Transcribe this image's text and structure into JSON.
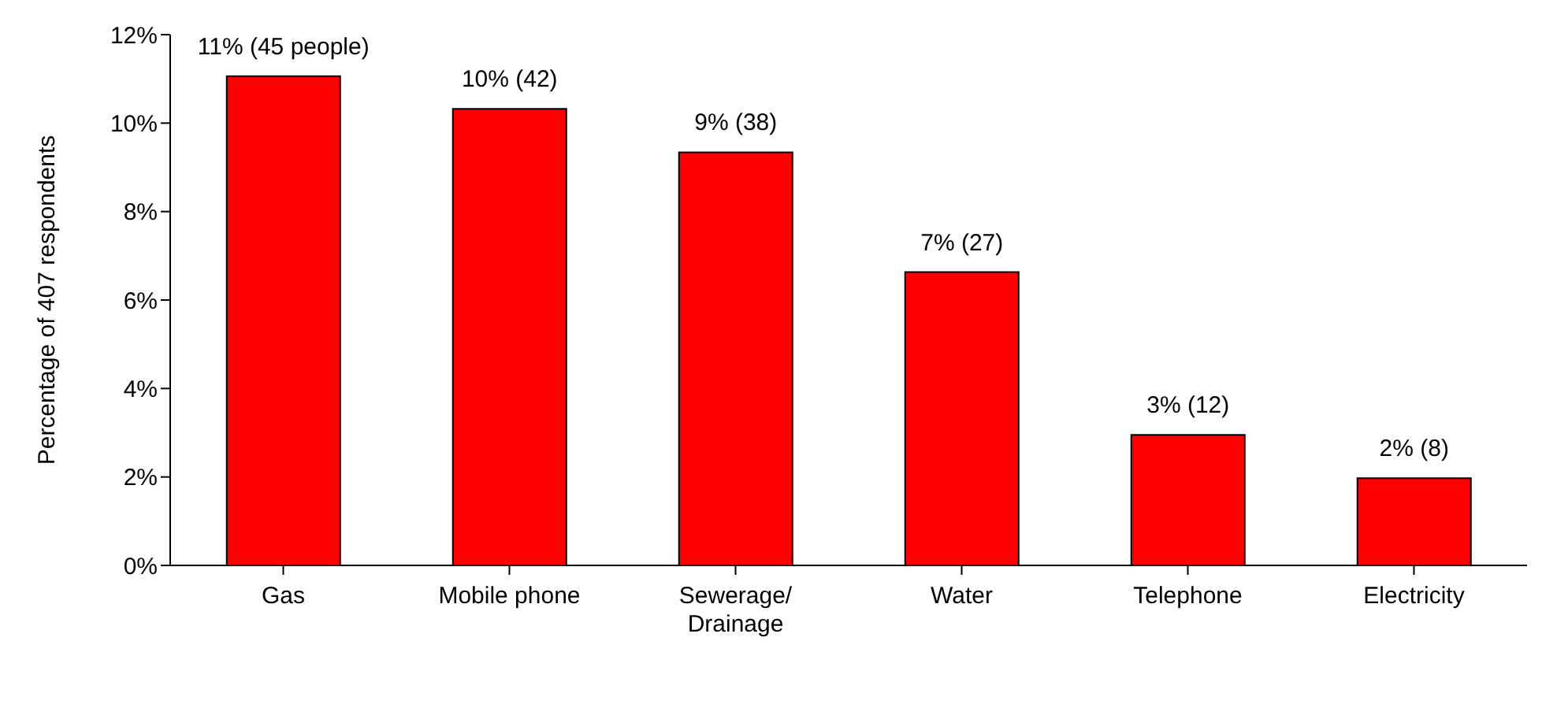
{
  "chart_data": {
    "type": "bar",
    "ylabel": "Percentage of 407 respondents",
    "categories": [
      "Gas",
      "Mobile phone",
      "Sewerage/ Drainage",
      "Water",
      "Telephone",
      "Electricity"
    ],
    "values": [
      11.06,
      10.32,
      9.34,
      6.63,
      2.95,
      1.97
    ],
    "value_labels": [
      "11% (45 people)",
      "10% (42)",
      "9% (38)",
      "7% (27)",
      "3% (12)",
      "2% (8)"
    ],
    "color": "#ff0000",
    "ylim": [
      0,
      12
    ],
    "yticks": [
      {
        "value": 0,
        "label": "0%"
      },
      {
        "value": 2,
        "label": "2%"
      },
      {
        "value": 4,
        "label": "4%"
      },
      {
        "value": 6,
        "label": "6%"
      },
      {
        "value": 8,
        "label": "8%"
      },
      {
        "value": 10,
        "label": "10%"
      },
      {
        "value": 12,
        "label": "12%"
      }
    ],
    "grid": false
  }
}
